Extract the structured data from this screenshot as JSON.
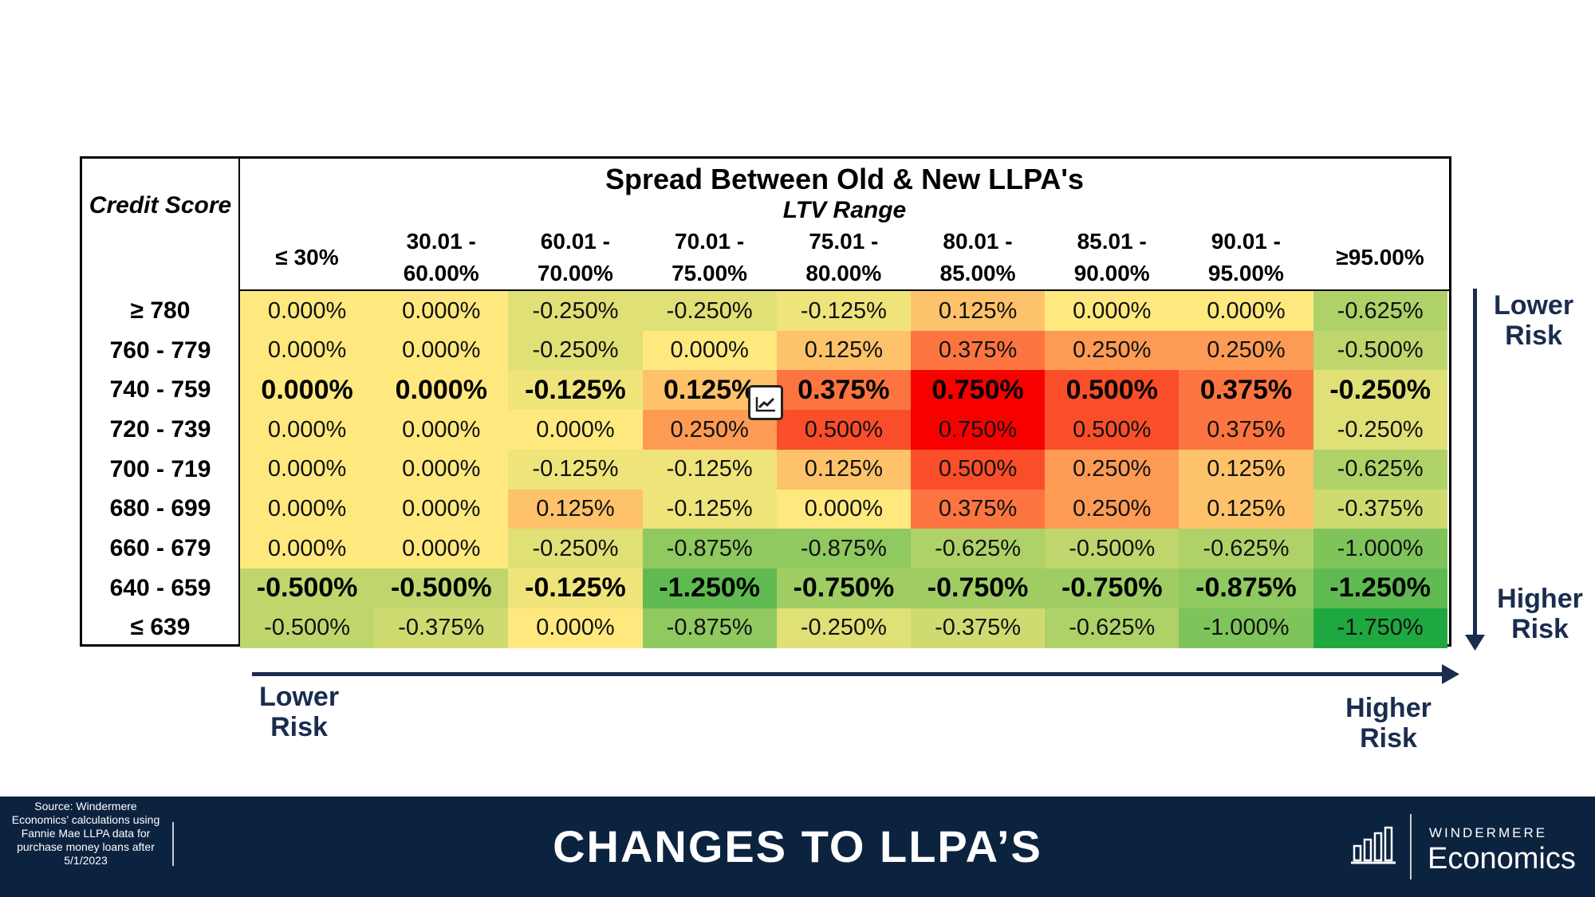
{
  "footer": {
    "title": "CHANGES TO LLPA’S",
    "source": "Source: Windermere Economics’ calculations using Fannie Mae LLPA data for  purchase money loans after 5/1/2023",
    "brand_top": "WINDERMERE",
    "brand_bottom": "Economics"
  },
  "annotations": {
    "vertical_top": "Lower\nRisk",
    "vertical_bottom": "Higher\nRisk",
    "horizontal_left": "Lower\nRisk",
    "horizontal_right": "Higher\nRisk"
  },
  "icons": {
    "overlay": "chart-icon",
    "brand": "bar-chart-icon"
  },
  "colors": {
    "navy": "#0c2340",
    "arrow": "#1a2d4f"
  },
  "chart_data": {
    "type": "heatmap",
    "title": "Spread Between Old & New LLPA's",
    "xlabel": "LTV Range",
    "ylabel": "Credit Score",
    "columns": [
      "≤ 30%",
      "30.01 -\n60.00%",
      "60.01 -\n70.00%",
      "70.01 -\n75.00%",
      "75.01 -\n80.00%",
      "80.01 -\n85.00%",
      "85.01 -\n90.00%",
      "90.01 -\n95.00%",
      "≥95.00%"
    ],
    "rows": [
      "≥ 780",
      "760 - 779",
      "740 - 759",
      "720 - 739",
      "700 - 719",
      "680 - 699",
      "660 - 679",
      "640 - 659",
      "≤ 639"
    ],
    "values": [
      [
        0.0,
        0.0,
        -0.25,
        -0.25,
        -0.125,
        0.125,
        0.0,
        0.0,
        -0.625
      ],
      [
        0.0,
        0.0,
        -0.25,
        0.0,
        0.125,
        0.375,
        0.25,
        0.25,
        -0.5
      ],
      [
        0.0,
        0.0,
        -0.125,
        0.125,
        0.375,
        0.75,
        0.5,
        0.375,
        -0.25
      ],
      [
        0.0,
        0.0,
        0.0,
        0.25,
        0.5,
        0.75,
        0.5,
        0.375,
        -0.25
      ],
      [
        0.0,
        0.0,
        -0.125,
        -0.125,
        0.125,
        0.5,
        0.25,
        0.125,
        -0.625
      ],
      [
        0.0,
        0.0,
        0.125,
        -0.125,
        0.0,
        0.375,
        0.25,
        0.125,
        -0.375
      ],
      [
        0.0,
        0.0,
        -0.25,
        -0.875,
        -0.875,
        -0.625,
        -0.5,
        -0.625,
        -1.0
      ],
      [
        -0.5,
        -0.5,
        -0.125,
        -1.25,
        -0.75,
        -0.75,
        -0.75,
        -0.875,
        -1.25
      ],
      [
        -0.5,
        -0.375,
        0.0,
        -0.875,
        -0.25,
        -0.375,
        -0.625,
        -1.0,
        -1.75
      ]
    ],
    "highlighted_rows": [
      "740 - 759",
      "640 - 659"
    ],
    "value_format": "percent, 3 decimals",
    "color_scale": {
      "min": -1.75,
      "mid": 0,
      "max": 0.75,
      "min_color": "#1fa83f",
      "mid_color": "#ffe97f",
      "max_color": "#f80000"
    }
  }
}
